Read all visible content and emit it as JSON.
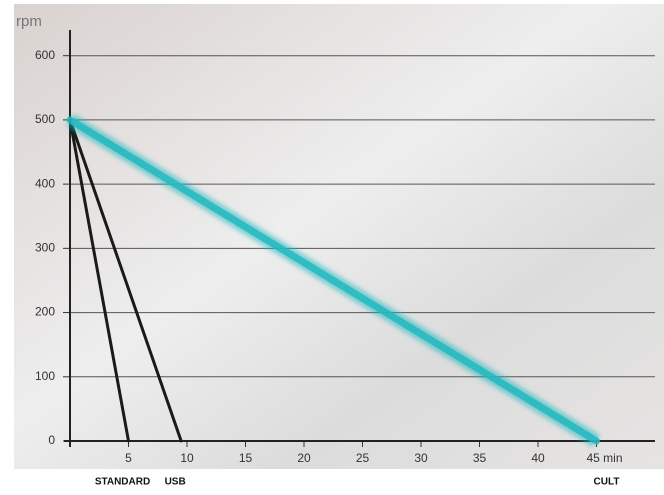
{
  "chart_data": {
    "type": "line",
    "y_label": "rpm",
    "xlim": [
      0,
      50
    ],
    "ylim": [
      0,
      640
    ],
    "xticks": [
      5,
      10,
      15,
      20,
      25,
      30,
      35,
      40,
      {
        "value": 45,
        "label": "45 min"
      }
    ],
    "yticks": [
      0,
      100,
      200,
      300,
      400,
      500,
      600
    ],
    "grid": true,
    "series": [
      {
        "name": "STANDARD",
        "color": "#1a1a1a",
        "x": [
          0,
          5
        ],
        "values": [
          500,
          0
        ]
      },
      {
        "name": "USB",
        "color": "#1a1a1a",
        "x": [
          0,
          9.5
        ],
        "values": [
          500,
          0
        ]
      },
      {
        "name": "CULT",
        "color": "#22b8c0",
        "x": [
          0,
          45
        ],
        "values": [
          500,
          0
        ]
      }
    ]
  }
}
